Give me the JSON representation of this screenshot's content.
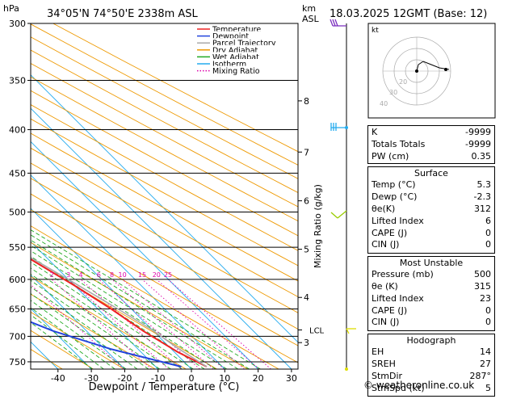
{
  "header": {
    "pressure_unit": "hPa",
    "location": "34°05'N  74°50'E  2338m  ASL",
    "km_label": "km",
    "asl_label": "ASL",
    "datetime": "18.03.2025  12GMT  (Base: 12)"
  },
  "footer": {
    "credit": "© weatheronline.co.uk"
  },
  "colors": {
    "temperature": "#ee2222",
    "dewpoint": "#2244dd",
    "parcel": "#aaaaaa",
    "dry_adiabat": "#ee9900",
    "wet_adiabat": "#22aa22",
    "isotherm": "#22aaee",
    "mixing_ratio": "#dd00aa"
  },
  "chart_data": {
    "type": "line",
    "title": "",
    "xlabel": "Dewpoint / Temperature (°C)",
    "ylabel_right": "Mixing Ratio (g/kg)",
    "xlim": [
      -45,
      32
    ],
    "ylim_hpa": [
      300,
      765
    ],
    "pressure_ticks": [
      300,
      350,
      400,
      450,
      500,
      550,
      600,
      650,
      700,
      750
    ],
    "temp_ticks": [
      -40,
      -30,
      -20,
      -10,
      0,
      10,
      20,
      30
    ],
    "km_ticks": [
      {
        "label": "8",
        "p": 370
      },
      {
        "label": "7",
        "p": 425
      },
      {
        "label": "6",
        "p": 485
      },
      {
        "label": "5",
        "p": 553
      },
      {
        "label": "4",
        "p": 630
      },
      {
        "label": "3",
        "p": 712
      }
    ],
    "lcl": {
      "label": "LCL",
      "p": 688
    },
    "mixing_ratio_labels": [
      "1",
      "2",
      "3",
      "4",
      "6",
      "8",
      "10",
      "15",
      "20",
      "25"
    ],
    "mixing_ratio_values": [
      1,
      2,
      3,
      4,
      6,
      8,
      10,
      15,
      20,
      25
    ],
    "legend": [
      "Temperature",
      "Dewpoint",
      "Parcel Trajectory",
      "Dry Adiabat",
      "Wet Adiabat",
      "Isotherm",
      "Mixing Ratio"
    ],
    "legend_position": "top-left",
    "series": [
      {
        "name": "Temperature",
        "points": [
          [
            -46,
            300
          ],
          [
            -41,
            340
          ],
          [
            -36,
            380
          ],
          [
            -33,
            410
          ],
          [
            -29,
            450
          ],
          [
            -24,
            490
          ],
          [
            -19,
            530
          ],
          [
            -15,
            570
          ],
          [
            -10,
            610
          ],
          [
            -6,
            650
          ],
          [
            -3,
            690
          ],
          [
            1,
            730
          ],
          [
            5.3,
            760
          ]
        ]
      },
      {
        "name": "Dewpoint",
        "points": [
          [
            -56,
            300
          ],
          [
            -50,
            340
          ],
          [
            -44,
            380
          ],
          [
            -40,
            410
          ],
          [
            -38,
            445
          ],
          [
            -48,
            475
          ],
          [
            -60,
            510
          ],
          [
            -68,
            548
          ],
          [
            -62,
            600
          ],
          [
            -40,
            650
          ],
          [
            -30,
            690
          ],
          [
            -18,
            725
          ],
          [
            -2.3,
            760
          ]
        ]
      },
      {
        "name": "Parcel Trajectory",
        "points": [
          [
            -58,
            300
          ],
          [
            -50,
            350
          ],
          [
            -42,
            400
          ],
          [
            -34,
            450
          ],
          [
            -25,
            500
          ],
          [
            -17,
            550
          ],
          [
            -10,
            600
          ],
          [
            -4,
            650
          ],
          [
            0,
            688
          ],
          [
            2,
            720
          ],
          [
            5.3,
            760
          ]
        ]
      }
    ]
  },
  "hodograph": {
    "title": "kt",
    "ring_labels": [
      "40",
      "30",
      "20"
    ]
  },
  "indices": {
    "top": [
      {
        "label": "K",
        "value": "-9999"
      },
      {
        "label": "Totals Totals",
        "value": "-9999"
      },
      {
        "label": "PW (cm)",
        "value": "0.35"
      }
    ],
    "surface": {
      "title": "Surface",
      "rows": [
        {
          "label": "Temp (°C)",
          "value": "5.3"
        },
        {
          "label": "Dewp (°C)",
          "value": "-2.3"
        },
        {
          "label": "θe(K)",
          "value": "312"
        },
        {
          "label": "Lifted Index",
          "value": "6"
        },
        {
          "label": "CAPE (J)",
          "value": "0"
        },
        {
          "label": "CIN (J)",
          "value": "0"
        }
      ]
    },
    "most_unstable": {
      "title": "Most Unstable",
      "rows": [
        {
          "label": "Pressure (mb)",
          "value": "500"
        },
        {
          "label": "θe (K)",
          "value": "315"
        },
        {
          "label": "Lifted Index",
          "value": "23"
        },
        {
          "label": "CAPE (J)",
          "value": "0"
        },
        {
          "label": "CIN (J)",
          "value": "0"
        }
      ]
    },
    "hodograph_box": {
      "title": "Hodograph",
      "rows": [
        {
          "label": "EH",
          "value": "14"
        },
        {
          "label": "SREH",
          "value": "27"
        },
        {
          "label": "StmDir",
          "value": "287°"
        },
        {
          "label": "StmSpd (kt)",
          "value": "5"
        }
      ]
    }
  }
}
